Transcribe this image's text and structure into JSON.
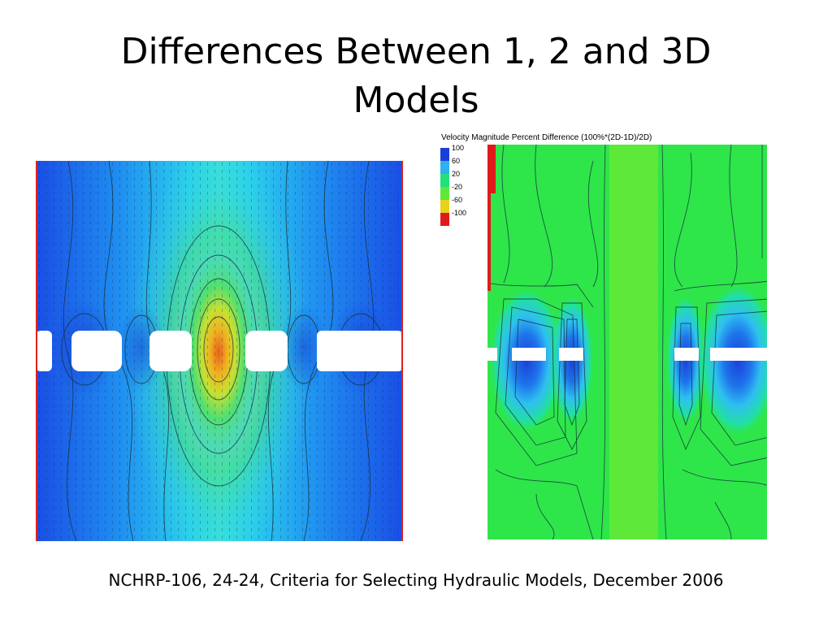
{
  "slide": {
    "title_line1": "Differences Between 1, 2 and 3D",
    "title_line2": "Models",
    "caption": "NCHRP-106, 24-24, Criteria for Selecting Hydraulic Models, December 2006"
  },
  "legend": {
    "title": "Velocity Magnitude Percent Difference (100%*(2D-1D)/2D)",
    "entries": [
      {
        "label": "100",
        "color": "#1a3fd8"
      },
      {
        "label": "60",
        "color": "#2fb0f0"
      },
      {
        "label": "20",
        "color": "#22e07a"
      },
      {
        "label": "-20",
        "color": "#5ee83a"
      },
      {
        "label": "-60",
        "color": "#e8d21a"
      },
      {
        "label": "-100",
        "color": "#e01a1a"
      }
    ]
  }
}
